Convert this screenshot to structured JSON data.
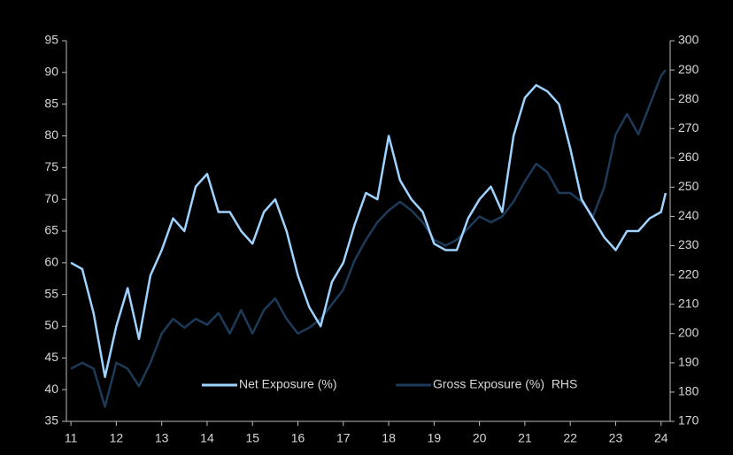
{
  "chart_data": {
    "type": "line",
    "x": [
      11.0,
      11.25,
      11.5,
      11.75,
      12.0,
      12.25,
      12.5,
      12.75,
      13.0,
      13.25,
      13.5,
      13.75,
      14.0,
      14.25,
      14.5,
      14.75,
      15.0,
      15.25,
      15.5,
      15.75,
      16.0,
      16.25,
      16.5,
      16.75,
      17.0,
      17.25,
      17.5,
      17.75,
      18.0,
      18.25,
      18.5,
      18.75,
      19.0,
      19.25,
      19.5,
      19.75,
      20.0,
      20.25,
      20.5,
      20.75,
      21.0,
      21.25,
      21.5,
      21.75,
      22.0,
      22.25,
      22.5,
      22.75,
      23.0,
      23.25,
      23.5,
      23.75,
      24.0,
      24.1
    ],
    "series": [
      {
        "name": "Net Exposure (%)",
        "color": "#9fd3ff",
        "axis": "y",
        "values": [
          60,
          59,
          52,
          42,
          50,
          56,
          48,
          58,
          62,
          67,
          65,
          72,
          74,
          68,
          68,
          65,
          63,
          68,
          70,
          65,
          58,
          53,
          50,
          57,
          60,
          66,
          71,
          70,
          80,
          73,
          70,
          68,
          63,
          62,
          62,
          67,
          70,
          72,
          68,
          80,
          86,
          88,
          87,
          85,
          78,
          70,
          67,
          64,
          62,
          65,
          65,
          67,
          68,
          71
        ]
      },
      {
        "name": "Gross Exposure (%)  RHS",
        "color": "#1d3a58",
        "axis": "y2",
        "values": [
          188,
          190,
          188,
          175,
          190,
          188,
          182,
          190,
          200,
          205,
          202,
          205,
          203,
          207,
          200,
          208,
          200,
          208,
          212,
          205,
          200,
          202,
          205,
          210,
          215,
          225,
          232,
          238,
          242,
          245,
          242,
          238,
          232,
          230,
          232,
          236,
          240,
          238,
          240,
          245,
          252,
          258,
          255,
          248,
          248,
          245,
          240,
          250,
          268,
          275,
          268,
          278,
          288,
          290
        ]
      }
    ],
    "xlim": [
      10.9,
      24.2
    ],
    "xticks": [
      11,
      12,
      13,
      14,
      15,
      16,
      17,
      18,
      19,
      20,
      21,
      22,
      23,
      24
    ],
    "ylim": [
      35,
      95
    ],
    "yticks": [
      35,
      40,
      45,
      50,
      55,
      60,
      65,
      70,
      75,
      80,
      85,
      90,
      95
    ],
    "y2lim": [
      170,
      300
    ],
    "y2ticks": [
      170,
      180,
      190,
      200,
      210,
      220,
      230,
      240,
      250,
      260,
      270,
      280,
      290,
      300
    ],
    "legend": "bottom",
    "grid": false
  }
}
